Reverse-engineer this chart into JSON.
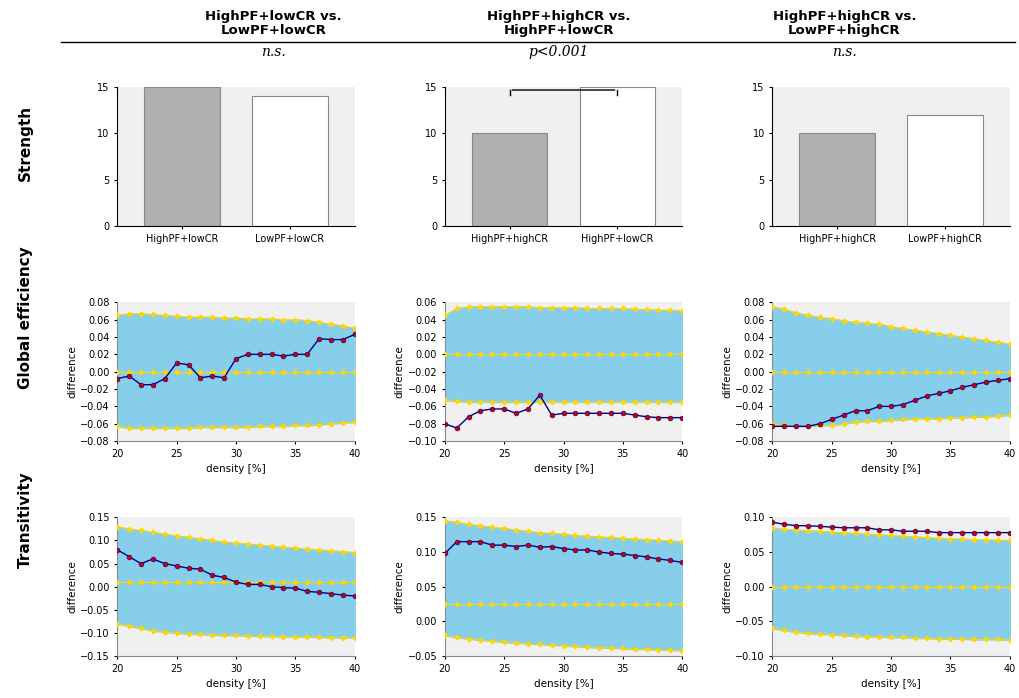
{
  "col_titles": [
    "HighPF+lowCR vs.\nLowPF+lowCR",
    "HighPF+highCR vs.\nHighPF+lowCR",
    "HighPF+highCR vs.\nLowPF+highCR"
  ],
  "row_titles": [
    "Strength",
    "Global efficiency",
    "Transitivity"
  ],
  "significance": [
    "n.s.",
    "p<0.001",
    "n.s."
  ],
  "bar_data": {
    "col0": {
      "bars": [
        15,
        14
      ],
      "labels": [
        "HighPF+lowCR",
        "LowPF+lowCR"
      ],
      "bar0_filled": true,
      "bar1_filled": false
    },
    "col1": {
      "bars": [
        10,
        15
      ],
      "labels": [
        "HighPF+highCR",
        "HighPF+lowCR"
      ],
      "bar0_filled": true,
      "bar1_filled": false
    },
    "col2": {
      "bars": [
        10,
        12
      ],
      "labels": [
        "HighPF+highCR",
        "LowPF+highCR"
      ],
      "bar0_filled": true,
      "bar1_filled": false
    }
  },
  "density": [
    20,
    21,
    22,
    23,
    24,
    25,
    26,
    27,
    28,
    29,
    30,
    31,
    32,
    33,
    34,
    35,
    36,
    37,
    38,
    39,
    40
  ],
  "ge_upper": {
    "col0": [
      0.065,
      0.067,
      0.067,
      0.066,
      0.065,
      0.064,
      0.063,
      0.063,
      0.063,
      0.062,
      0.062,
      0.061,
      0.061,
      0.061,
      0.06,
      0.06,
      0.059,
      0.057,
      0.055,
      0.053,
      0.05
    ],
    "col1": [
      0.045,
      0.053,
      0.055,
      0.055,
      0.055,
      0.055,
      0.055,
      0.055,
      0.054,
      0.054,
      0.054,
      0.054,
      0.053,
      0.053,
      0.053,
      0.053,
      0.052,
      0.052,
      0.051,
      0.051,
      0.05
    ],
    "col2": [
      0.075,
      0.072,
      0.068,
      0.065,
      0.063,
      0.061,
      0.059,
      0.057,
      0.056,
      0.055,
      0.052,
      0.05,
      0.048,
      0.046,
      0.044,
      0.042,
      0.04,
      0.038,
      0.036,
      0.034,
      0.032
    ]
  },
  "ge_lower": {
    "col0": [
      -0.063,
      -0.065,
      -0.065,
      -0.065,
      -0.065,
      -0.065,
      -0.065,
      -0.064,
      -0.064,
      -0.064,
      -0.064,
      -0.064,
      -0.063,
      -0.063,
      -0.063,
      -0.062,
      -0.062,
      -0.061,
      -0.06,
      -0.059,
      -0.058
    ],
    "col1": [
      -0.053,
      -0.054,
      -0.055,
      -0.055,
      -0.055,
      -0.055,
      -0.055,
      -0.055,
      -0.055,
      -0.055,
      -0.055,
      -0.055,
      -0.055,
      -0.055,
      -0.055,
      -0.055,
      -0.055,
      -0.055,
      -0.055,
      -0.055,
      -0.055
    ],
    "col2": [
      -0.06,
      -0.062,
      -0.063,
      -0.063,
      -0.062,
      -0.062,
      -0.06,
      -0.058,
      -0.057,
      -0.057,
      -0.056,
      -0.055,
      -0.054,
      -0.054,
      -0.054,
      -0.053,
      -0.053,
      -0.052,
      -0.052,
      -0.051,
      -0.05
    ]
  },
  "ge_zero": {
    "col0": [
      0.0,
      0.0,
      0.0,
      0.0,
      0.0,
      0.0,
      0.0,
      0.0,
      0.0,
      0.0,
      0.0,
      0.0,
      0.0,
      0.0,
      0.0,
      0.0,
      0.0,
      0.0,
      0.0,
      0.0,
      0.0
    ],
    "col1": [
      0.0,
      0.0,
      0.0,
      0.0,
      0.0,
      0.0,
      0.0,
      0.0,
      0.0,
      0.0,
      0.0,
      0.0,
      0.0,
      0.0,
      0.0,
      0.0,
      0.0,
      0.0,
      0.0,
      0.0,
      0.0
    ],
    "col2": [
      0.0,
      0.0,
      0.0,
      0.0,
      0.0,
      0.0,
      0.0,
      0.0,
      0.0,
      0.0,
      0.0,
      0.0,
      0.0,
      0.0,
      0.0,
      0.0,
      0.0,
      0.0,
      0.0,
      0.0,
      0.0
    ]
  },
  "ge_line": {
    "col0": [
      -0.008,
      -0.005,
      -0.015,
      -0.015,
      -0.008,
      0.01,
      0.008,
      -0.007,
      -0.005,
      -0.007,
      0.015,
      0.02,
      0.02,
      0.02,
      0.018,
      0.02,
      0.02,
      0.038,
      0.037,
      0.037,
      0.043
    ],
    "col1": [
      -0.08,
      -0.085,
      -0.072,
      -0.065,
      -0.063,
      -0.063,
      -0.068,
      -0.063,
      -0.047,
      -0.07,
      -0.068,
      -0.068,
      -0.068,
      -0.068,
      -0.068,
      -0.068,
      -0.07,
      -0.072,
      -0.073,
      -0.073,
      -0.073
    ],
    "col2": [
      -0.063,
      -0.063,
      -0.063,
      -0.063,
      -0.06,
      -0.055,
      -0.05,
      -0.045,
      -0.045,
      -0.04,
      -0.04,
      -0.038,
      -0.033,
      -0.028,
      -0.025,
      -0.022,
      -0.018,
      -0.015,
      -0.012,
      -0.01,
      -0.008
    ]
  },
  "tr_upper": {
    "col0": [
      0.13,
      0.125,
      0.122,
      0.118,
      0.114,
      0.11,
      0.107,
      0.104,
      0.1,
      0.097,
      0.095,
      0.093,
      0.09,
      0.088,
      0.086,
      0.084,
      0.082,
      0.08,
      0.078,
      0.076,
      0.074
    ],
    "col1": [
      0.145,
      0.143,
      0.14,
      0.138,
      0.136,
      0.134,
      0.132,
      0.13,
      0.128,
      0.127,
      0.126,
      0.124,
      0.123,
      0.122,
      0.121,
      0.12,
      0.119,
      0.118,
      0.117,
      0.116,
      0.115
    ],
    "col2": [
      0.085,
      0.083,
      0.082,
      0.081,
      0.08,
      0.079,
      0.078,
      0.077,
      0.076,
      0.075,
      0.074,
      0.073,
      0.072,
      0.071,
      0.07,
      0.069,
      0.069,
      0.068,
      0.068,
      0.067,
      0.067
    ]
  },
  "tr_lower": {
    "col0": [
      -0.08,
      -0.085,
      -0.09,
      -0.095,
      -0.098,
      -0.1,
      -0.102,
      -0.103,
      -0.104,
      -0.105,
      -0.105,
      -0.106,
      -0.107,
      -0.107,
      -0.108,
      -0.108,
      -0.108,
      -0.109,
      -0.11,
      -0.11,
      -0.11
    ],
    "col1": [
      -0.02,
      -0.023,
      -0.025,
      -0.027,
      -0.028,
      -0.03,
      -0.031,
      -0.032,
      -0.033,
      -0.034,
      -0.035,
      -0.036,
      -0.037,
      -0.038,
      -0.038,
      -0.039,
      -0.04,
      -0.04,
      -0.041,
      -0.041,
      -0.042
    ],
    "col2": [
      -0.06,
      -0.063,
      -0.065,
      -0.067,
      -0.068,
      -0.069,
      -0.07,
      -0.071,
      -0.072,
      -0.072,
      -0.073,
      -0.073,
      -0.074,
      -0.074,
      -0.075,
      -0.075,
      -0.075,
      -0.076,
      -0.076,
      -0.076,
      -0.077
    ]
  },
  "tr_zero": {
    "col0": [
      0.01,
      0.01,
      0.01,
      0.01,
      0.01,
      0.01,
      0.01,
      0.01,
      0.01,
      0.01,
      0.01,
      0.01,
      0.01,
      0.01,
      0.01,
      0.01,
      0.01,
      0.01,
      0.01,
      0.01,
      0.01
    ],
    "col1": [
      0.025,
      0.025,
      0.025,
      0.025,
      0.025,
      0.025,
      0.025,
      0.025,
      0.025,
      0.025,
      0.025,
      0.025,
      0.025,
      0.025,
      0.025,
      0.025,
      0.025,
      0.025,
      0.025,
      0.025,
      0.025
    ],
    "col2": [
      0.0,
      0.0,
      0.0,
      0.0,
      0.0,
      0.0,
      0.0,
      0.0,
      0.0,
      0.0,
      0.0,
      0.0,
      0.0,
      0.0,
      0.0,
      0.0,
      0.0,
      0.0,
      0.0,
      0.0,
      0.0
    ]
  },
  "tr_line": {
    "col0": [
      0.08,
      0.065,
      0.05,
      0.06,
      0.05,
      0.045,
      0.04,
      0.038,
      0.025,
      0.02,
      0.01,
      0.005,
      0.005,
      0.0,
      -0.002,
      -0.003,
      -0.01,
      -0.012,
      -0.015,
      -0.018,
      -0.02
    ],
    "col1": [
      0.098,
      0.115,
      0.115,
      0.115,
      0.11,
      0.11,
      0.108,
      0.11,
      0.107,
      0.108,
      0.105,
      0.103,
      0.103,
      0.1,
      0.098,
      0.097,
      0.095,
      0.093,
      0.09,
      0.088,
      0.085
    ],
    "col2": [
      0.093,
      0.09,
      0.088,
      0.088,
      0.087,
      0.086,
      0.085,
      0.085,
      0.085,
      0.082,
      0.082,
      0.08,
      0.08,
      0.08,
      0.078,
      0.078,
      0.078,
      0.078,
      0.078,
      0.078,
      0.078
    ]
  },
  "ge_ylim": {
    "col0": [
      -0.08,
      0.08
    ],
    "col1": [
      -0.1,
      0.06
    ],
    "col2": [
      -0.08,
      0.08
    ]
  },
  "tr_ylim": {
    "col0": [
      -0.15,
      0.15
    ],
    "col1": [
      -0.05,
      0.15
    ],
    "col2": [
      -0.1,
      0.1
    ]
  },
  "ge_yticks": {
    "col0": [
      -0.08,
      -0.06,
      -0.04,
      -0.02,
      0,
      0.02,
      0.04,
      0.06,
      0.08
    ],
    "col1": [
      -0.1,
      -0.08,
      -0.06,
      -0.04,
      -0.02,
      0,
      0.02,
      0.04,
      0.06
    ],
    "col2": [
      -0.08,
      -0.06,
      -0.04,
      -0.02,
      0,
      0.02,
      0.04,
      0.06,
      0.08
    ]
  },
  "tr_yticks": {
    "col0": [
      -0.15,
      -0.1,
      -0.05,
      0,
      0.05,
      0.1,
      0.15
    ],
    "col1": [
      -0.05,
      0,
      0.05,
      0.1,
      0.15
    ],
    "col2": [
      -0.1,
      -0.05,
      0,
      0.05,
      0.1
    ]
  },
  "bar_color_filled": "#b0b0b0",
  "cyan_color": "#87CEEB",
  "yellow_color": "#FFD700",
  "blue_line_color": "#00008B",
  "red_dot_color": "#CC0000",
  "background_color": "#f0f0f0"
}
